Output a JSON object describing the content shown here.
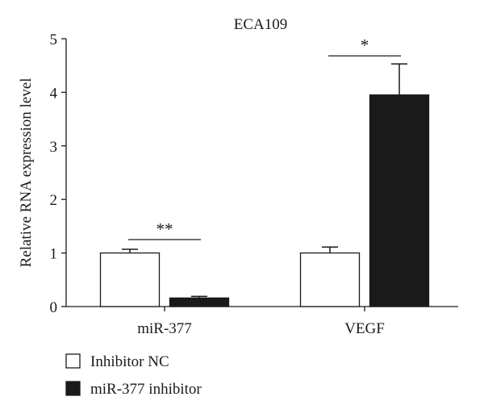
{
  "chart_data": {
    "type": "bar",
    "title": "ECA109",
    "xlabel": "",
    "ylabel": "Relative RNA expression level",
    "ylim": [
      0,
      5
    ],
    "yticks": [
      "0",
      "1",
      "2",
      "3",
      "4",
      "5"
    ],
    "categories": [
      "miR-377",
      "VEGF"
    ],
    "series": [
      {
        "name": "Inhibitor NC",
        "fill": "#ffffff",
        "values": [
          1.0,
          1.0
        ],
        "errors": [
          0.07,
          0.11
        ]
      },
      {
        "name": "miR-377 inhibitor",
        "fill": "#1a1a1a",
        "values": [
          0.16,
          3.95
        ],
        "errors": [
          0.03,
          0.58
        ]
      }
    ],
    "significance": [
      {
        "category": "miR-377",
        "label": "**",
        "y": 1.25
      },
      {
        "category": "VEGF",
        "label": "*",
        "y": 4.68
      }
    ],
    "legend_placement": "bottom-left",
    "grid": false
  }
}
